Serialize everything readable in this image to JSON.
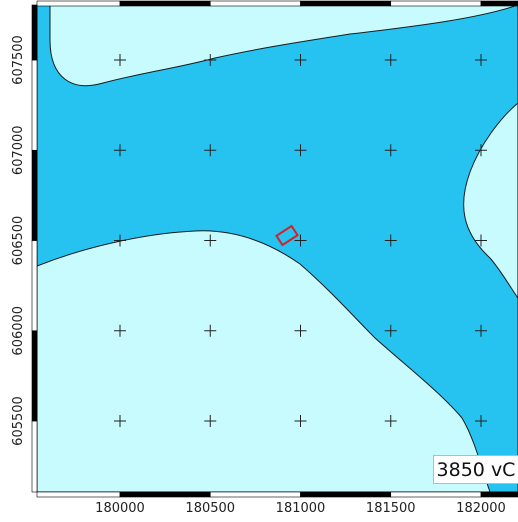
{
  "colors": {
    "deep_zone": "#26c2f0",
    "shallow_zone": "#c7fbfd",
    "contour_line": "#1a1a1a",
    "grid_cross": "#222222",
    "site_marker": "#d81f25",
    "frame": "#000000"
  },
  "axes": {
    "x_ticks": [
      {
        "value": 180000,
        "label": "180000"
      },
      {
        "value": 180500,
        "label": "180500"
      },
      {
        "value": 181000,
        "label": "181000"
      },
      {
        "value": 181500,
        "label": "181500"
      },
      {
        "value": 182000,
        "label": "182000"
      }
    ],
    "y_ticks": [
      {
        "value": 605500,
        "label": "605500"
      },
      {
        "value": 606000,
        "label": "606000"
      },
      {
        "value": 606500,
        "label": "606500"
      },
      {
        "value": 607000,
        "label": "607000"
      },
      {
        "value": 607500,
        "label": "607500"
      }
    ],
    "x_range": [
      179530,
      182100
    ],
    "y_range": [
      605080,
      607760
    ]
  },
  "grid_crosses": {
    "x": [
      180000,
      180500,
      181000,
      181500,
      182000
    ],
    "y": [
      605500,
      606000,
      606500,
      607000,
      607500
    ]
  },
  "zones": [
    {
      "name": "shallow-zone",
      "color": "#c7fbfd"
    },
    {
      "name": "deep-zone",
      "color": "#26c2f0"
    }
  ],
  "time_label": "3850 vC"
}
